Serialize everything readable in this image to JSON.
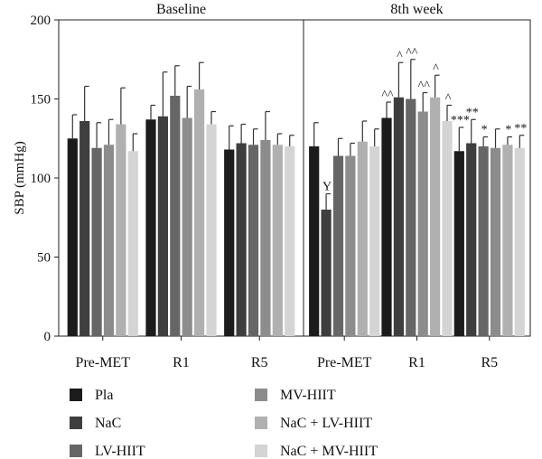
{
  "chart_data": {
    "type": "bar",
    "ylabel": "SBP (mmHg)",
    "ylim": [
      0,
      200
    ],
    "yticks": [
      0,
      50,
      100,
      150,
      200
    ],
    "grid": false,
    "legend_position": "bottom",
    "panels": [
      {
        "label": "Baseline",
        "groups": [
          "Pre-MET",
          "R1",
          "R5"
        ],
        "series": [
          {
            "name": "Pla",
            "color": "#1c1c1c",
            "values": [
              125,
              137,
              118
            ],
            "errors": [
              15,
              9,
              15
            ]
          },
          {
            "name": "NaC",
            "color": "#3e3e3e",
            "values": [
              136,
              139,
              122
            ],
            "errors": [
              22,
              28,
              12
            ]
          },
          {
            "name": "LV-HIIT",
            "color": "#666666",
            "values": [
              119,
              152,
              121
            ],
            "errors": [
              16,
              19,
              10
            ]
          },
          {
            "name": "MV-HIIT",
            "color": "#8c8c8c",
            "values": [
              121,
              138,
              124
            ],
            "errors": [
              16,
              20,
              18
            ]
          },
          {
            "name": "NaC + LV-HIIT",
            "color": "#b0b0b0",
            "values": [
              134,
              156,
              121
            ],
            "errors": [
              23,
              17,
              7
            ]
          },
          {
            "name": "NaC + MV-HIIT",
            "color": "#d4d4d4",
            "values": [
              117,
              134,
              120
            ],
            "errors": [
              11,
              8,
              7
            ]
          }
        ],
        "annotations": []
      },
      {
        "label": "8th week",
        "groups": [
          "Pre-MET",
          "R1",
          "R5"
        ],
        "series": [
          {
            "name": "Pla",
            "color": "#1c1c1c",
            "values": [
              120,
              138,
              117
            ],
            "errors": [
              15,
              10,
              15
            ]
          },
          {
            "name": "NaC",
            "color": "#3e3e3e",
            "values": [
              80,
              151,
              122
            ],
            "errors": [
              10,
              22,
              15
            ]
          },
          {
            "name": "LV-HIIT",
            "color": "#666666",
            "values": [
              114,
              150,
              120
            ],
            "errors": [
              11,
              25,
              6
            ]
          },
          {
            "name": "MV-HIIT",
            "color": "#8c8c8c",
            "values": [
              114,
              142,
              119
            ],
            "errors": [
              8,
              12,
              12
            ]
          },
          {
            "name": "NaC + LV-HIIT",
            "color": "#b0b0b0",
            "values": [
              123,
              151,
              121
            ],
            "errors": [
              13,
              14,
              5
            ]
          },
          {
            "name": "NaC + MV-HIIT",
            "color": "#d4d4d4",
            "values": [
              120,
              136,
              119
            ],
            "errors": [
              11,
              10,
              8
            ]
          }
        ],
        "annotations": [
          {
            "group": 0,
            "series": 1,
            "text": "Y"
          },
          {
            "group": 1,
            "series": 0,
            "text": "^^"
          },
          {
            "group": 1,
            "series": 1,
            "text": "^"
          },
          {
            "group": 1,
            "series": 2,
            "text": "^^"
          },
          {
            "group": 1,
            "series": 3,
            "text": "^^"
          },
          {
            "group": 1,
            "series": 4,
            "text": "^"
          },
          {
            "group": 1,
            "series": 5,
            "text": "^"
          },
          {
            "group": 2,
            "series": 0,
            "text": "***"
          },
          {
            "group": 2,
            "series": 1,
            "text": "**"
          },
          {
            "group": 2,
            "series": 2,
            "text": "*"
          },
          {
            "group": 2,
            "series": 4,
            "text": "*"
          },
          {
            "group": 2,
            "series": 5,
            "text": "**"
          }
        ]
      }
    ]
  }
}
